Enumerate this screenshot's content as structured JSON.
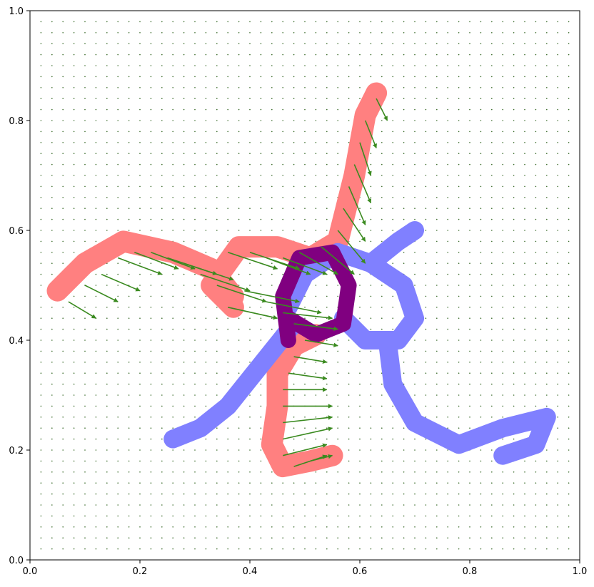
{
  "chart_data": {
    "type": "scatter",
    "title": "",
    "xlabel": "",
    "ylabel": "",
    "xlim": [
      0,
      1
    ],
    "ylim": [
      0,
      1
    ],
    "grid": false,
    "x_ticks": [
      "0.0",
      "0.2",
      "0.4",
      "0.6",
      "0.8",
      "1.0"
    ],
    "y_ticks": [
      "0.0",
      "0.2",
      "0.4",
      "0.6",
      "0.8",
      "1.0"
    ],
    "colors": {
      "source_shape": "#ff8080",
      "target_shape": "#8080ff",
      "overlap": "#800080",
      "vectors": "#3a8a1f",
      "grid_points": "#3a6b2a"
    },
    "background_grid": {
      "x_start": 0.02,
      "y_start": 0.02,
      "step": 0.02
    },
    "series": [
      {
        "name": "",
        "role": "source-shape",
        "strokes": [
          [
            [
              0.05,
              0.49
            ],
            [
              0.1,
              0.54
            ],
            [
              0.17,
              0.58
            ],
            [
              0.26,
              0.56
            ],
            [
              0.33,
              0.53
            ],
            [
              0.37,
              0.48
            ]
          ],
          [
            [
              0.37,
              0.46
            ],
            [
              0.33,
              0.5
            ],
            [
              0.38,
              0.57
            ],
            [
              0.45,
              0.57
            ],
            [
              0.51,
              0.55
            ],
            [
              0.56,
              0.58
            ],
            [
              0.59,
              0.7
            ],
            [
              0.61,
              0.81
            ],
            [
              0.63,
              0.85
            ]
          ],
          [
            [
              0.52,
              0.41
            ],
            [
              0.48,
              0.39
            ],
            [
              0.45,
              0.34
            ],
            [
              0.45,
              0.28
            ],
            [
              0.44,
              0.21
            ],
            [
              0.46,
              0.17
            ],
            [
              0.51,
              0.18
            ],
            [
              0.55,
              0.19
            ]
          ]
        ]
      },
      {
        "name": "",
        "role": "target-shape",
        "strokes": [
          [
            [
              0.26,
              0.22
            ],
            [
              0.31,
              0.24
            ],
            [
              0.36,
              0.28
            ],
            [
              0.4,
              0.33
            ],
            [
              0.44,
              0.38
            ],
            [
              0.48,
              0.43
            ]
          ],
          [
            [
              0.47,
              0.46
            ],
            [
              0.5,
              0.52
            ],
            [
              0.56,
              0.56
            ],
            [
              0.62,
              0.54
            ],
            [
              0.68,
              0.5
            ],
            [
              0.7,
              0.44
            ],
            [
              0.67,
              0.4
            ],
            [
              0.61,
              0.4
            ],
            [
              0.57,
              0.44
            ]
          ],
          [
            [
              0.62,
              0.54
            ],
            [
              0.67,
              0.58
            ],
            [
              0.7,
              0.6
            ]
          ],
          [
            [
              0.65,
              0.4
            ],
            [
              0.66,
              0.32
            ],
            [
              0.7,
              0.25
            ],
            [
              0.78,
              0.21
            ],
            [
              0.86,
              0.24
            ],
            [
              0.94,
              0.26
            ],
            [
              0.92,
              0.21
            ],
            [
              0.86,
              0.19
            ]
          ]
        ]
      },
      {
        "name": "",
        "role": "overlap",
        "strokes": [
          [
            [
              0.47,
              0.4
            ],
            [
              0.46,
              0.48
            ],
            [
              0.49,
              0.55
            ],
            [
              0.55,
              0.56
            ],
            [
              0.58,
              0.5
            ],
            [
              0.57,
              0.43
            ],
            [
              0.52,
              0.41
            ],
            [
              0.47,
              0.44
            ]
          ]
        ]
      }
    ],
    "vectors": [
      {
        "x": 0.07,
        "y": 0.47,
        "u": 0.05,
        "v": -0.03
      },
      {
        "x": 0.1,
        "y": 0.5,
        "u": 0.06,
        "v": -0.03
      },
      {
        "x": 0.13,
        "y": 0.52,
        "u": 0.07,
        "v": -0.03
      },
      {
        "x": 0.16,
        "y": 0.55,
        "u": 0.08,
        "v": -0.03
      },
      {
        "x": 0.19,
        "y": 0.56,
        "u": 0.08,
        "v": -0.03
      },
      {
        "x": 0.22,
        "y": 0.56,
        "u": 0.08,
        "v": -0.03
      },
      {
        "x": 0.25,
        "y": 0.55,
        "u": 0.09,
        "v": -0.03
      },
      {
        "x": 0.28,
        "y": 0.54,
        "u": 0.09,
        "v": -0.03
      },
      {
        "x": 0.31,
        "y": 0.52,
        "u": 0.09,
        "v": -0.03
      },
      {
        "x": 0.34,
        "y": 0.5,
        "u": 0.09,
        "v": -0.03
      },
      {
        "x": 0.36,
        "y": 0.56,
        "u": 0.09,
        "v": -0.03
      },
      {
        "x": 0.4,
        "y": 0.56,
        "u": 0.09,
        "v": -0.03
      },
      {
        "x": 0.43,
        "y": 0.55,
        "u": 0.08,
        "v": -0.03
      },
      {
        "x": 0.46,
        "y": 0.55,
        "u": 0.08,
        "v": -0.03
      },
      {
        "x": 0.49,
        "y": 0.56,
        "u": 0.07,
        "v": -0.04
      },
      {
        "x": 0.53,
        "y": 0.57,
        "u": 0.06,
        "v": -0.05
      },
      {
        "x": 0.56,
        "y": 0.6,
        "u": 0.05,
        "v": -0.06
      },
      {
        "x": 0.57,
        "y": 0.64,
        "u": 0.04,
        "v": -0.06
      },
      {
        "x": 0.58,
        "y": 0.68,
        "u": 0.03,
        "v": -0.07
      },
      {
        "x": 0.59,
        "y": 0.72,
        "u": 0.03,
        "v": -0.07
      },
      {
        "x": 0.6,
        "y": 0.76,
        "u": 0.02,
        "v": -0.06
      },
      {
        "x": 0.61,
        "y": 0.8,
        "u": 0.02,
        "v": -0.05
      },
      {
        "x": 0.63,
        "y": 0.84,
        "u": 0.02,
        "v": -0.04
      },
      {
        "x": 0.36,
        "y": 0.46,
        "u": 0.09,
        "v": -0.02
      },
      {
        "x": 0.39,
        "y": 0.49,
        "u": 0.1,
        "v": -0.02
      },
      {
        "x": 0.43,
        "y": 0.47,
        "u": 0.1,
        "v": -0.02
      },
      {
        "x": 0.46,
        "y": 0.45,
        "u": 0.09,
        "v": -0.01
      },
      {
        "x": 0.48,
        "y": 0.43,
        "u": 0.08,
        "v": -0.01
      },
      {
        "x": 0.5,
        "y": 0.4,
        "u": 0.06,
        "v": -0.01
      },
      {
        "x": 0.48,
        "y": 0.37,
        "u": 0.06,
        "v": -0.01
      },
      {
        "x": 0.47,
        "y": 0.34,
        "u": 0.07,
        "v": -0.01
      },
      {
        "x": 0.46,
        "y": 0.31,
        "u": 0.08,
        "v": 0.0
      },
      {
        "x": 0.46,
        "y": 0.28,
        "u": 0.09,
        "v": 0.0
      },
      {
        "x": 0.46,
        "y": 0.25,
        "u": 0.09,
        "v": 0.01
      },
      {
        "x": 0.46,
        "y": 0.22,
        "u": 0.09,
        "v": 0.02
      },
      {
        "x": 0.46,
        "y": 0.19,
        "u": 0.08,
        "v": 0.02
      },
      {
        "x": 0.48,
        "y": 0.17,
        "u": 0.06,
        "v": 0.02
      },
      {
        "x": 0.51,
        "y": 0.18,
        "u": 0.04,
        "v": 0.01
      }
    ]
  }
}
